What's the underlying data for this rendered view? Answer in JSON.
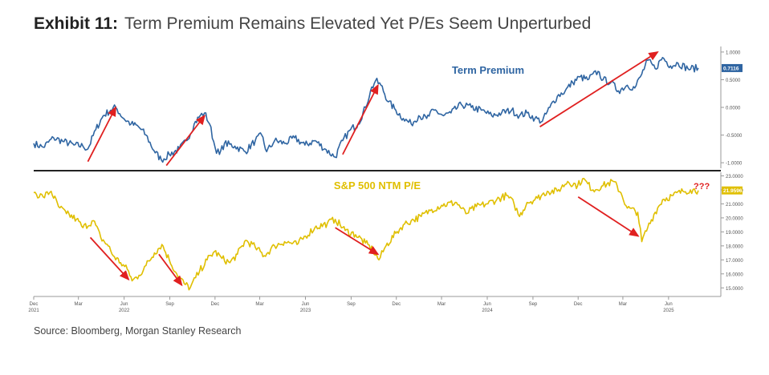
{
  "exhibit": {
    "label": "Exhibit 11:",
    "title": "Term Premium Remains Elevated Yet P/Es Seem Unperturbed",
    "source": "Source: Bloomberg, Morgan Stanley Research"
  },
  "colors": {
    "term_premium": "#2f65a2",
    "pe": "#e0bf00",
    "arrow": "#e02020",
    "divider": "#222222",
    "axis_text": "#555555",
    "term_premium_label": "#2f65a2",
    "pe_label": "#e0bf00",
    "qqq": "#e02020"
  },
  "chart_data": [
    {
      "type": "line",
      "title": "Term Premium",
      "current_value_label": "0.7116",
      "ylim": [
        -1.1,
        1.1
      ],
      "ytick_labels": [
        "1.0000",
        "0.5000",
        "0.0000",
        "-0.5000",
        "-1.0000"
      ],
      "ytick_values": [
        1.0,
        0.5,
        0.0,
        -0.5,
        -1.0
      ],
      "x_start": "2021-12-01",
      "x_end": "2025-07-31",
      "series": [
        {
          "points": [
            [
              "2021-12-01",
              -0.65
            ],
            [
              "2021-12-20",
              -0.72
            ],
            [
              "2022-01-10",
              -0.55
            ],
            [
              "2022-01-31",
              -0.62
            ],
            [
              "2022-02-20",
              -0.68
            ],
            [
              "2022-03-10",
              -0.7
            ],
            [
              "2022-03-20",
              -0.75
            ],
            [
              "2022-04-05",
              -0.4
            ],
            [
              "2022-04-20",
              -0.15
            ],
            [
              "2022-05-05",
              -0.05
            ],
            [
              "2022-05-15",
              0.0
            ],
            [
              "2022-05-31",
              -0.2
            ],
            [
              "2022-06-15",
              -0.3
            ],
            [
              "2022-06-30",
              -0.35
            ],
            [
              "2022-07-15",
              -0.5
            ],
            [
              "2022-07-31",
              -0.78
            ],
            [
              "2022-08-15",
              -0.95
            ],
            [
              "2022-08-31",
              -0.85
            ],
            [
              "2022-09-20",
              -0.75
            ],
            [
              "2022-10-05",
              -0.6
            ],
            [
              "2022-10-20",
              -0.3
            ],
            [
              "2022-11-01",
              -0.15
            ],
            [
              "2022-11-10",
              -0.1
            ],
            [
              "2022-11-20",
              -0.3
            ],
            [
              "2022-12-01",
              -0.72
            ],
            [
              "2022-12-10",
              -0.85
            ],
            [
              "2022-12-20",
              -0.65
            ],
            [
              "2023-01-10",
              -0.7
            ],
            [
              "2023-01-31",
              -0.8
            ],
            [
              "2023-02-20",
              -0.6
            ],
            [
              "2023-03-05",
              -0.5
            ],
            [
              "2023-03-15",
              -0.8
            ],
            [
              "2023-03-31",
              -0.6
            ],
            [
              "2023-04-20",
              -0.65
            ],
            [
              "2023-05-10",
              -0.55
            ],
            [
              "2023-05-31",
              -0.68
            ],
            [
              "2023-06-20",
              -0.6
            ],
            [
              "2023-07-10",
              -0.75
            ],
            [
              "2023-07-31",
              -0.9
            ],
            [
              "2023-08-15",
              -0.6
            ],
            [
              "2023-08-31",
              -0.4
            ],
            [
              "2023-09-15",
              -0.3
            ],
            [
              "2023-09-30",
              0.0
            ],
            [
              "2023-10-10",
              0.3
            ],
            [
              "2023-10-20",
              0.48
            ],
            [
              "2023-10-31",
              0.4
            ],
            [
              "2023-11-15",
              0.1
            ],
            [
              "2023-11-30",
              -0.05
            ],
            [
              "2023-12-15",
              -0.2
            ],
            [
              "2023-12-31",
              -0.3
            ],
            [
              "2024-01-15",
              -0.15
            ],
            [
              "2024-01-31",
              -0.2
            ],
            [
              "2024-02-15",
              -0.05
            ],
            [
              "2024-03-05",
              -0.15
            ],
            [
              "2024-03-20",
              -0.1
            ],
            [
              "2024-04-10",
              0.05
            ],
            [
              "2024-04-30",
              0.0
            ],
            [
              "2024-05-20",
              -0.05
            ],
            [
              "2024-06-10",
              -0.15
            ],
            [
              "2024-06-30",
              -0.1
            ],
            [
              "2024-07-20",
              -0.05
            ],
            [
              "2024-08-05",
              -0.15
            ],
            [
              "2024-08-20",
              -0.1
            ],
            [
              "2024-09-05",
              -0.2
            ],
            [
              "2024-09-20",
              -0.25
            ],
            [
              "2024-10-05",
              0.0
            ],
            [
              "2024-10-20",
              0.2
            ],
            [
              "2024-11-05",
              0.3
            ],
            [
              "2024-11-20",
              0.45
            ],
            [
              "2024-12-05",
              0.55
            ],
            [
              "2024-12-20",
              0.5
            ],
            [
              "2025-01-10",
              0.65
            ],
            [
              "2025-01-20",
              0.5
            ],
            [
              "2025-02-05",
              0.45
            ],
            [
              "2025-02-20",
              0.3
            ],
            [
              "2025-03-10",
              0.4
            ],
            [
              "2025-03-25",
              0.35
            ],
            [
              "2025-04-08",
              0.6
            ],
            [
              "2025-04-20",
              0.85
            ],
            [
              "2025-05-05",
              0.7
            ],
            [
              "2025-05-20",
              0.9
            ],
            [
              "2025-06-05",
              0.75
            ],
            [
              "2025-06-20",
              0.8
            ],
            [
              "2025-07-10",
              0.7
            ],
            [
              "2025-07-31",
              0.71
            ]
          ]
        }
      ],
      "arrows": [
        {
          "from": [
            "2022-03-20",
            -0.98
          ],
          "to": [
            "2022-05-15",
            0.0
          ]
        },
        {
          "from": [
            "2022-08-25",
            -1.05
          ],
          "to": [
            "2022-11-10",
            -0.15
          ]
        },
        {
          "from": [
            "2023-08-15",
            -0.85
          ],
          "to": [
            "2023-10-25",
            0.4
          ]
        },
        {
          "from": [
            "2024-09-15",
            -0.35
          ],
          "to": [
            "2025-05-10",
            1.0
          ]
        }
      ]
    },
    {
      "type": "line",
      "title": "S&P 500 NTM P/E",
      "annotation": "???",
      "current_value_label": "21.9596",
      "ylim": [
        14.5,
        23.2
      ],
      "ytick_labels": [
        "23.0000",
        "22.0000",
        "21.0000",
        "20.0000",
        "19.0000",
        "18.0000",
        "17.0000",
        "16.0000",
        "15.0000"
      ],
      "ytick_values": [
        23,
        22,
        21,
        20,
        19,
        18,
        17,
        16,
        15
      ],
      "x_start": "2021-12-01",
      "x_end": "2025-07-31",
      "x_ticks": [
        {
          "date": "2021-12-01",
          "label": "Dec",
          "year": "2021"
        },
        {
          "date": "2022-03-01",
          "label": "Mar",
          "year": ""
        },
        {
          "date": "2022-06-01",
          "label": "Jun",
          "year": "2022"
        },
        {
          "date": "2022-09-01",
          "label": "Sep",
          "year": ""
        },
        {
          "date": "2022-12-01",
          "label": "Dec",
          "year": ""
        },
        {
          "date": "2023-03-01",
          "label": "Mar",
          "year": ""
        },
        {
          "date": "2023-06-01",
          "label": "Jun",
          "year": "2023"
        },
        {
          "date": "2023-09-01",
          "label": "Sep",
          "year": ""
        },
        {
          "date": "2023-12-01",
          "label": "Dec",
          "year": ""
        },
        {
          "date": "2024-03-01",
          "label": "Mar",
          "year": ""
        },
        {
          "date": "2024-06-01",
          "label": "Jun",
          "year": "2024"
        },
        {
          "date": "2024-09-01",
          "label": "Sep",
          "year": ""
        },
        {
          "date": "2024-12-01",
          "label": "Dec",
          "year": ""
        },
        {
          "date": "2025-03-01",
          "label": "Mar",
          "year": ""
        },
        {
          "date": "2025-06-01",
          "label": "Jun",
          "year": "2025"
        }
      ],
      "series": [
        {
          "points": [
            [
              "2021-12-01",
              21.8
            ],
            [
              "2021-12-20",
              21.5
            ],
            [
              "2022-01-05",
              21.9
            ],
            [
              "2022-01-20",
              20.8
            ],
            [
              "2022-02-05",
              20.3
            ],
            [
              "2022-02-25",
              19.9
            ],
            [
              "2022-03-10",
              19.3
            ],
            [
              "2022-03-31",
              19.8
            ],
            [
              "2022-04-15",
              18.6
            ],
            [
              "2022-04-30",
              18.0
            ],
            [
              "2022-05-10",
              17.3
            ],
            [
              "2022-05-25",
              16.8
            ],
            [
              "2022-06-10",
              16.2
            ],
            [
              "2022-06-17",
              15.5
            ],
            [
              "2022-07-01",
              15.9
            ],
            [
              "2022-07-15",
              16.6
            ],
            [
              "2022-08-01",
              17.5
            ],
            [
              "2022-08-16",
              18.1
            ],
            [
              "2022-08-31",
              17.0
            ],
            [
              "2022-09-15",
              16.0
            ],
            [
              "2022-09-30",
              15.3
            ],
            [
              "2022-10-12",
              15.0
            ],
            [
              "2022-10-31",
              16.2
            ],
            [
              "2022-11-15",
              17.0
            ],
            [
              "2022-11-30",
              17.6
            ],
            [
              "2022-12-15",
              17.1
            ],
            [
              "2022-12-31",
              16.8
            ],
            [
              "2023-01-15",
              17.4
            ],
            [
              "2023-02-01",
              18.4
            ],
            [
              "2023-02-20",
              17.9
            ],
            [
              "2023-03-10",
              17.3
            ],
            [
              "2023-03-31",
              18.0
            ],
            [
              "2023-04-20",
              18.3
            ],
            [
              "2023-05-15",
              18.1
            ],
            [
              "2023-06-01",
              18.7
            ],
            [
              "2023-06-20",
              19.3
            ],
            [
              "2023-07-15",
              19.6
            ],
            [
              "2023-07-31",
              19.9
            ],
            [
              "2023-08-20",
              19.1
            ],
            [
              "2023-09-10",
              18.8
            ],
            [
              "2023-09-30",
              18.2
            ],
            [
              "2023-10-15",
              17.7
            ],
            [
              "2023-10-27",
              17.0
            ],
            [
              "2023-11-10",
              18.0
            ],
            [
              "2023-11-30",
              18.9
            ],
            [
              "2023-12-15",
              19.5
            ],
            [
              "2023-12-31",
              19.8
            ],
            [
              "2024-01-20",
              20.1
            ],
            [
              "2024-02-10",
              20.6
            ],
            [
              "2024-03-01",
              20.9
            ],
            [
              "2024-03-31",
              21.1
            ],
            [
              "2024-04-19",
              20.3
            ],
            [
              "2024-05-10",
              20.8
            ],
            [
              "2024-05-31",
              21.0
            ],
            [
              "2024-06-20",
              21.3
            ],
            [
              "2024-07-10",
              21.6
            ],
            [
              "2024-07-25",
              21.0
            ],
            [
              "2024-08-05",
              20.1
            ],
            [
              "2024-08-20",
              21.1
            ],
            [
              "2024-09-10",
              21.4
            ],
            [
              "2024-09-30",
              21.9
            ],
            [
              "2024-10-20",
              21.9
            ],
            [
              "2024-11-10",
              22.6
            ],
            [
              "2024-11-30",
              22.3
            ],
            [
              "2024-12-10",
              22.8
            ],
            [
              "2024-12-31",
              22.0
            ],
            [
              "2025-01-20",
              22.3
            ],
            [
              "2025-02-10",
              22.6
            ],
            [
              "2025-02-25",
              21.8
            ],
            [
              "2025-03-10",
              20.7
            ],
            [
              "2025-03-31",
              20.4
            ],
            [
              "2025-04-08",
              18.3
            ],
            [
              "2025-04-20",
              19.3
            ],
            [
              "2025-05-05",
              20.4
            ],
            [
              "2025-05-20",
              21.3
            ],
            [
              "2025-06-10",
              21.6
            ],
            [
              "2025-06-30",
              21.9
            ],
            [
              "2025-07-15",
              22.0
            ],
            [
              "2025-07-31",
              21.96
            ]
          ]
        }
      ],
      "arrows": [
        {
          "from": [
            "2022-03-25",
            18.6
          ],
          "to": [
            "2022-06-10",
            15.6
          ]
        },
        {
          "from": [
            "2022-08-10",
            17.4
          ],
          "to": [
            "2022-09-25",
            15.2
          ]
        },
        {
          "from": [
            "2023-07-31",
            19.3
          ],
          "to": [
            "2023-10-25",
            17.4
          ]
        },
        {
          "from": [
            "2024-12-01",
            21.5
          ],
          "to": [
            "2025-04-01",
            18.7
          ]
        }
      ]
    }
  ]
}
